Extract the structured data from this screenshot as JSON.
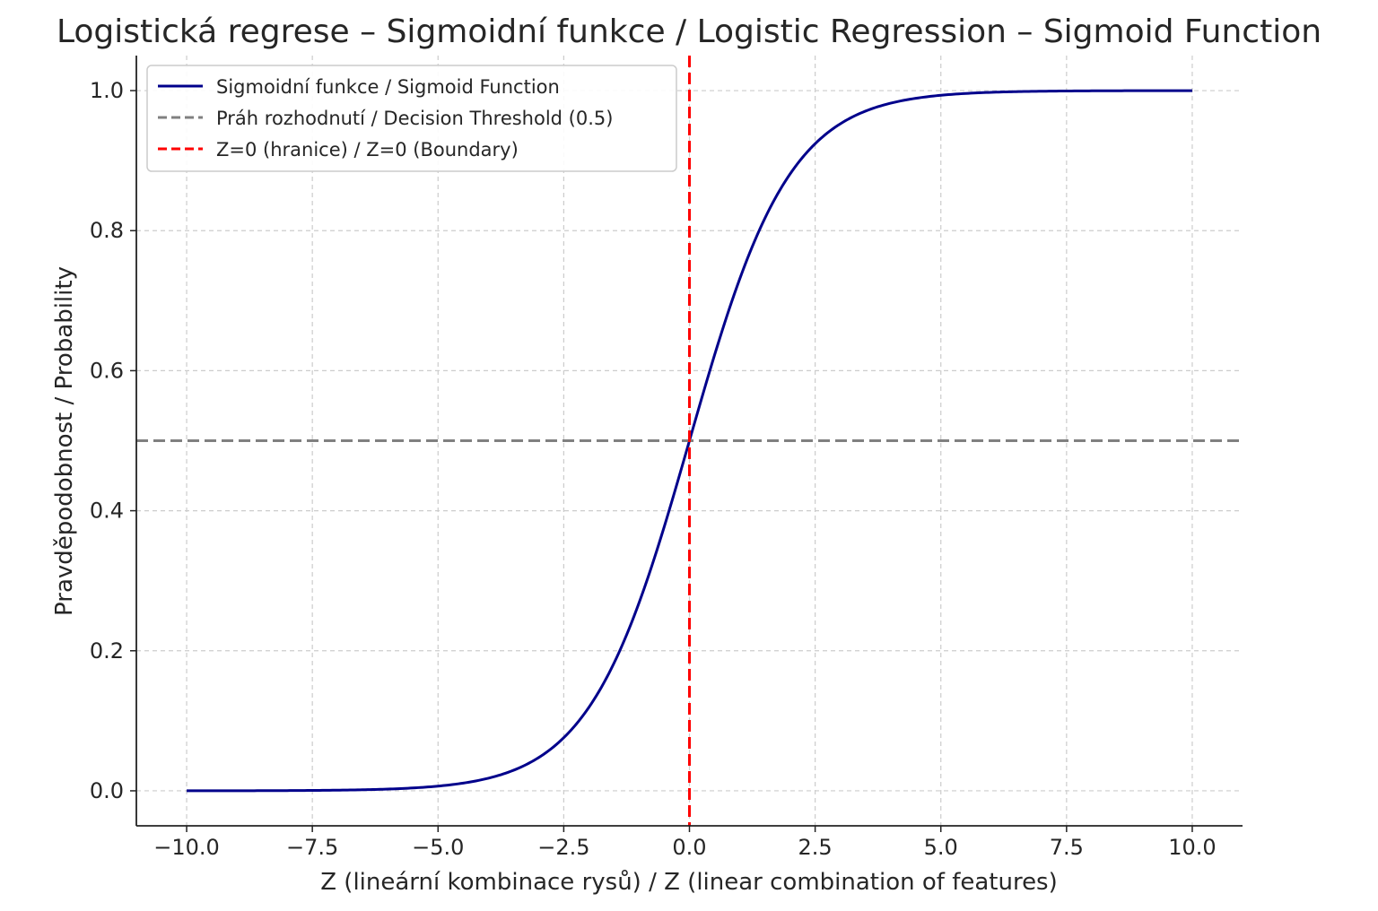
{
  "chart_data": {
    "type": "line",
    "title": "Logistická regrese – Sigmoidní funkce / Logistic Regression – Sigmoid Function",
    "xlabel": "Z (lineární kombinace rysů) / Z (linear combination of features)",
    "ylabel": "Pravděpodobnost / Probability",
    "xlim": [
      -11,
      11
    ],
    "ylim": [
      -0.05,
      1.05
    ],
    "xticks": [
      -10.0,
      -7.5,
      -5.0,
      -2.5,
      0.0,
      2.5,
      5.0,
      7.5,
      10.0
    ],
    "xtick_labels": [
      "−10.0",
      "−7.5",
      "−5.0",
      "−2.5",
      "0.0",
      "2.5",
      "5.0",
      "7.5",
      "10.0"
    ],
    "yticks": [
      0.0,
      0.2,
      0.4,
      0.6,
      0.8,
      1.0
    ],
    "ytick_labels": [
      "0.0",
      "0.2",
      "0.4",
      "0.6",
      "0.8",
      "1.0"
    ],
    "grid": true,
    "legend_position": "top-left",
    "series": [
      {
        "name": "Sigmoidní funkce / Sigmoid Function",
        "color": "#00008b",
        "style": "solid",
        "x": [
          -10,
          -9,
          -8,
          -7,
          -6,
          -5,
          -4,
          -3,
          -2.5,
          -2,
          -1.5,
          -1,
          -0.5,
          0,
          0.5,
          1,
          1.5,
          2,
          2.5,
          3,
          4,
          5,
          6,
          7,
          8,
          9,
          10
        ],
        "y": [
          4.54e-05,
          0.0001234,
          0.0003354,
          0.0009111,
          0.0024726,
          0.0066929,
          0.0179862,
          0.0474259,
          0.0758582,
          0.1192029,
          0.1824255,
          0.2689414,
          0.3775407,
          0.5,
          0.6224593,
          0.7310586,
          0.8175745,
          0.8807971,
          0.9241418,
          0.9525741,
          0.9820138,
          0.9933071,
          0.9975274,
          0.9990889,
          0.9996646,
          0.9998766,
          0.9999546
        ]
      },
      {
        "name": "Práh rozhodnutí / Decision Threshold (0.5)",
        "color": "#808080",
        "style": "dashed",
        "orientation": "horizontal",
        "y": 0.5
      },
      {
        "name": "Z=0 (hranice) / Z=0 (Boundary)",
        "color": "#ff0000",
        "style": "dashed",
        "orientation": "vertical",
        "x": 0
      }
    ]
  }
}
